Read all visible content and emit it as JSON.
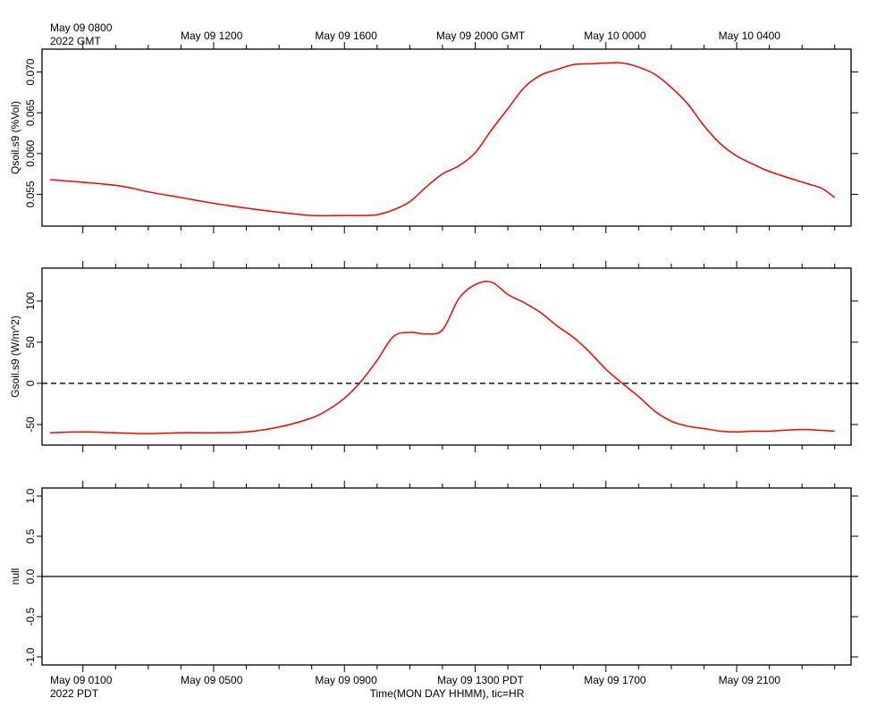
{
  "top_axis": {
    "first_label": "May 09 0800",
    "first_sublabel": "2022 GMT",
    "labels": [
      "May 09 1200",
      "May 09 1600",
      "May 09 2000 GMT",
      "May 10 0000",
      "May 10 0400"
    ]
  },
  "bottom_axis": {
    "first_label": "May 09 0100",
    "first_sublabel": "2022 PDT",
    "labels": [
      "May 09 0500",
      "May 09 0900",
      "May 09 1300 PDT",
      "May 09 1700",
      "May 09 2100"
    ],
    "title": "Time(MON DAY HHMM), tic=HR"
  },
  "colors": {
    "series": "#ff0000",
    "axis": "#000000",
    "reference": "#000000"
  },
  "chart_data": [
    {
      "type": "line",
      "ylabel": "Qsoil.s9 (%Vol)",
      "x_unit": "hours since May 09 0100 PDT",
      "ylim": [
        0.0511,
        0.0728
      ],
      "yticks": [
        0.055,
        0.06,
        0.065,
        0.07
      ],
      "ytick_labels": [
        "0.055",
        "0.060",
        "0.065",
        "0.070"
      ],
      "series": [
        {
          "x": [
            -1,
            1,
            2,
            3,
            4,
            5,
            6,
            7,
            8,
            8.5,
            9,
            9.5,
            10,
            10.5,
            11,
            11.5,
            12,
            12.5,
            13,
            13.5,
            14,
            14.5,
            15,
            15.5,
            16,
            16.5,
            17,
            17.5,
            18,
            18.5,
            19,
            19.5,
            20,
            20.5,
            21,
            22,
            22.5,
            22.7,
            23
          ],
          "y": [
            0.0568,
            0.0561,
            0.0553,
            0.0546,
            0.0539,
            0.0533,
            0.0528,
            0.0524,
            0.0524,
            0.0524,
            0.0525,
            0.0531,
            0.0541,
            0.0559,
            0.0575,
            0.0585,
            0.0601,
            0.0629,
            0.0655,
            0.0681,
            0.0696,
            0.0703,
            0.0709,
            0.071,
            0.0711,
            0.0711,
            0.0706,
            0.0697,
            0.0681,
            0.0661,
            0.0634,
            0.0612,
            0.0597,
            0.0587,
            0.0578,
            0.0565,
            0.0559,
            0.0555,
            0.0546
          ]
        }
      ]
    },
    {
      "type": "line",
      "ylabel": "Gsoil.s9 (W/m^2)",
      "x_unit": "hours since May 09 0100 PDT",
      "ylim": [
        -75,
        140
      ],
      "yticks": [
        -50,
        0,
        50,
        100
      ],
      "ytick_labels": [
        "-50",
        "0",
        "50",
        "100"
      ],
      "reference_line": {
        "y": 0,
        "style": "dashed"
      },
      "series": [
        {
          "x": [
            -1,
            0,
            1,
            2,
            3,
            4,
            5,
            6,
            7,
            7.5,
            8,
            8.5,
            9,
            9.5,
            10,
            10.5,
            11,
            11.5,
            12,
            12.5,
            13,
            13.5,
            14,
            14.5,
            15,
            15.5,
            16,
            16.5,
            17,
            17.5,
            18,
            18.5,
            19,
            19.5,
            20,
            20.5,
            21,
            22,
            22.5,
            23
          ],
          "y": [
            -60,
            -59,
            -60,
            -61,
            -60,
            -60,
            -59,
            -53,
            -42,
            -32,
            -18,
            2,
            28,
            57,
            62,
            60,
            65,
            103,
            120,
            123,
            108,
            98,
            86,
            70,
            56,
            38,
            17,
            0,
            -16,
            -34,
            -46,
            -52,
            -55,
            -58,
            -59,
            -58,
            -58,
            -56,
            -57,
            -58
          ]
        }
      ]
    },
    {
      "type": "line",
      "ylabel": "null",
      "x_unit": "hours since May 09 0100 PDT",
      "ylim": [
        -1.1,
        1.1
      ],
      "yticks": [
        -1,
        -0.5,
        0,
        0.5,
        1
      ],
      "ytick_labels": [
        "-1.0",
        "-0.5",
        "0.0",
        "0.5",
        "1.0"
      ],
      "reference_line": {
        "y": 0,
        "style": "solid"
      },
      "series": []
    }
  ]
}
